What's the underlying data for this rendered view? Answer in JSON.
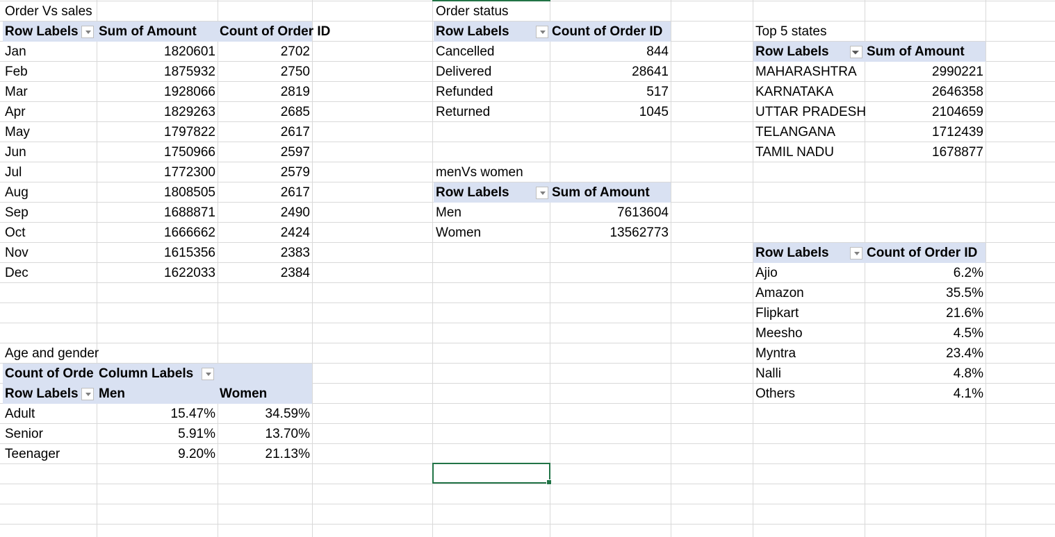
{
  "order_vs_sales": {
    "title": "Order Vs  sales",
    "headers": [
      "Row Labels",
      "Sum of Amount",
      "Count of Order ID"
    ],
    "rows": [
      [
        "Jan",
        "1820601",
        "2702"
      ],
      [
        "Feb",
        "1875932",
        "2750"
      ],
      [
        "Mar",
        "1928066",
        "2819"
      ],
      [
        "Apr",
        "1829263",
        "2685"
      ],
      [
        "May",
        "1797822",
        "2617"
      ],
      [
        "Jun",
        "1750966",
        "2597"
      ],
      [
        "Jul",
        "1772300",
        "2579"
      ],
      [
        "Aug",
        "1808505",
        "2617"
      ],
      [
        "Sep",
        "1688871",
        "2490"
      ],
      [
        "Oct",
        "1666662",
        "2424"
      ],
      [
        "Nov",
        "1615356",
        "2383"
      ],
      [
        "Dec",
        "1622033",
        "2384"
      ]
    ]
  },
  "order_status": {
    "title": "Order status",
    "headers": [
      "Row Labels",
      "Count of Order ID"
    ],
    "rows": [
      [
        "Cancelled",
        "844"
      ],
      [
        "Delivered",
        "28641"
      ],
      [
        "Refunded",
        "517"
      ],
      [
        "Returned",
        "1045"
      ]
    ]
  },
  "men_vs_women": {
    "title": "menVs women",
    "headers": [
      "Row Labels",
      "Sum of Amount"
    ],
    "rows": [
      [
        "Men",
        "7613604"
      ],
      [
        "Women",
        "13562773"
      ]
    ]
  },
  "top5_states": {
    "title": "Top 5 states",
    "headers": [
      "Row Labels",
      "Sum of Amount"
    ],
    "rows": [
      [
        "MAHARASHTRA",
        "2990221"
      ],
      [
        "KARNATAKA",
        "2646358"
      ],
      [
        "UTTAR PRADESH",
        "2104659"
      ],
      [
        "TELANGANA",
        "1712439"
      ],
      [
        "TAMIL NADU",
        "1678877"
      ]
    ]
  },
  "channels": {
    "headers": [
      "Row Labels",
      "Count of Order ID"
    ],
    "rows": [
      [
        "Ajio",
        "6.2%"
      ],
      [
        "Amazon",
        "35.5%"
      ],
      [
        "Flipkart",
        "21.6%"
      ],
      [
        "Meesho",
        "4.5%"
      ],
      [
        "Myntra",
        "23.4%"
      ],
      [
        "Nalli",
        "4.8%"
      ],
      [
        "Others",
        "4.1%"
      ]
    ]
  },
  "age_gender": {
    "title": "Age and gender",
    "header_top": [
      "Count of Orde",
      "Column Labels"
    ],
    "headers": [
      "Row Labels",
      "Men",
      "Women"
    ],
    "rows": [
      [
        "Adult",
        "15.47%",
        "34.59%"
      ],
      [
        "Senior",
        "5.91%",
        "13.70%"
      ],
      [
        "Teenager",
        "9.20%",
        "21.13%"
      ]
    ]
  }
}
